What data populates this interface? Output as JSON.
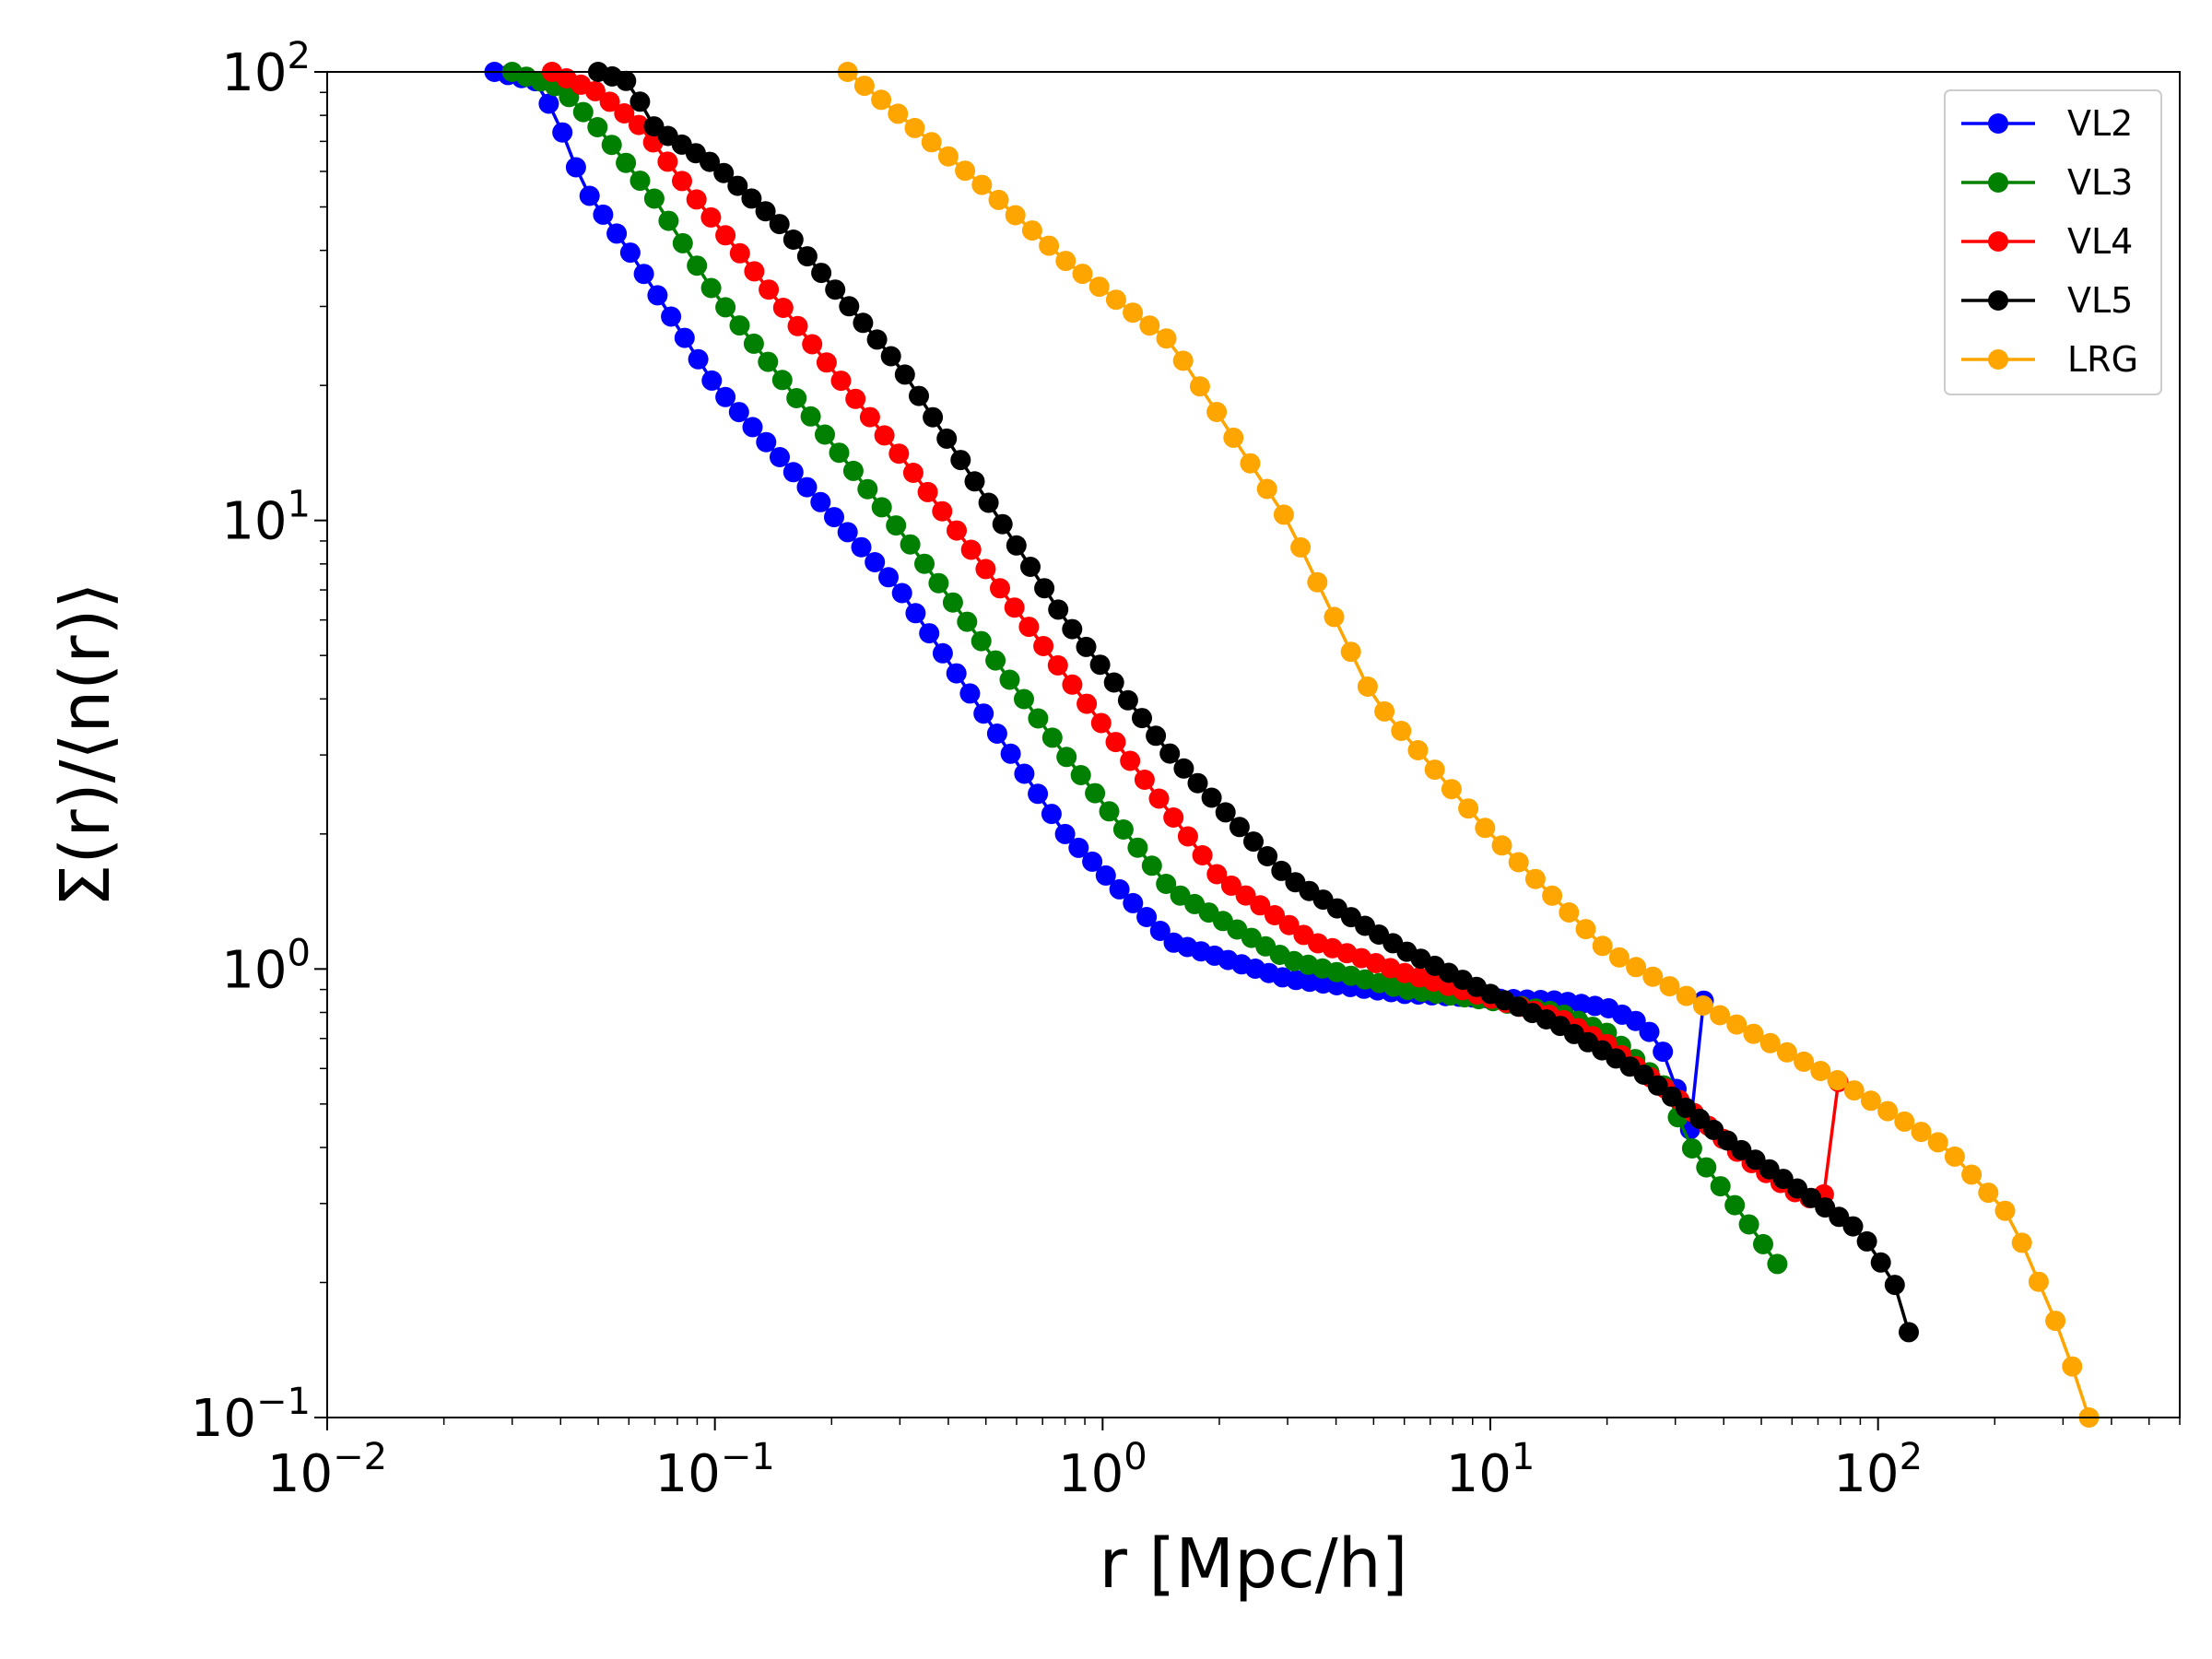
{
  "chart_data": {
    "type": "line",
    "title": "",
    "xlabel": "r [Mpc/h]",
    "ylabel": "Σ(r)/⟨n(r)⟩",
    "xscale": "log",
    "yscale": "log",
    "xlim": [
      0.01,
      600
    ],
    "ylim": [
      0.1,
      100
    ],
    "grid": false,
    "legend_position": "top-right",
    "x_ticks": [
      {
        "value": 0.01,
        "base": "10",
        "exp": "−2"
      },
      {
        "value": 0.1,
        "base": "10",
        "exp": "−1"
      },
      {
        "value": 1,
        "base": "10",
        "exp": "0"
      },
      {
        "value": 10,
        "base": "10",
        "exp": "1"
      },
      {
        "value": 100,
        "base": "10",
        "exp": "2"
      }
    ],
    "y_ticks": [
      {
        "value": 0.1,
        "base": "10",
        "exp": "−1"
      },
      {
        "value": 1,
        "base": "10",
        "exp": "0"
      },
      {
        "value": 10,
        "base": "10",
        "exp": "1"
      },
      {
        "value": 100,
        "base": "10",
        "exp": "2"
      }
    ],
    "series": [
      {
        "name": "VL2",
        "color": "#0000ff",
        "anchors": [
          [
            0.027,
            100
          ],
          [
            0.035,
            95
          ],
          [
            0.04,
            75
          ],
          [
            0.046,
            55
          ],
          [
            0.06,
            40
          ],
          [
            0.1,
            20
          ],
          [
            0.3,
            7
          ],
          [
            0.8,
            2
          ],
          [
            1.5,
            1.15
          ],
          [
            3,
            0.95
          ],
          [
            6,
            0.88
          ],
          [
            10,
            0.86
          ],
          [
            15,
            0.85
          ],
          [
            20,
            0.82
          ],
          [
            25,
            0.75
          ],
          [
            28,
            0.65
          ],
          [
            30,
            0.55
          ],
          [
            33,
            0.43
          ],
          [
            35.5,
            0.85
          ]
        ],
        "n": 90
      },
      {
        "name": "VL3",
        "color": "#008000",
        "anchors": [
          [
            0.03,
            100
          ],
          [
            0.04,
            92
          ],
          [
            0.05,
            75
          ],
          [
            0.07,
            52
          ],
          [
            0.1,
            32
          ],
          [
            0.3,
            9.5
          ],
          [
            0.8,
            3
          ],
          [
            1.5,
            1.5
          ],
          [
            3,
            1.05
          ],
          [
            6,
            0.9
          ],
          [
            10,
            0.85
          ],
          [
            15,
            0.8
          ],
          [
            20,
            0.72
          ],
          [
            28,
            0.55
          ],
          [
            33,
            0.4
          ],
          [
            45,
            0.28
          ],
          [
            55,
            0.22
          ]
        ],
        "n": 90
      },
      {
        "name": "VL4",
        "color": "#ff0000",
        "anchors": [
          [
            0.038,
            100
          ],
          [
            0.05,
            90
          ],
          [
            0.065,
            75
          ],
          [
            0.085,
            55
          ],
          [
            0.12,
            38
          ],
          [
            0.3,
            14
          ],
          [
            1,
            3.5
          ],
          [
            2,
            1.6
          ],
          [
            3.5,
            1.15
          ],
          [
            6,
            0.98
          ],
          [
            10,
            0.86
          ],
          [
            15,
            0.78
          ],
          [
            20,
            0.68
          ],
          [
            30,
            0.52
          ],
          [
            45,
            0.38
          ],
          [
            60,
            0.32
          ],
          [
            72,
            0.3
          ],
          [
            79,
            0.56
          ]
        ],
        "n": 90
      },
      {
        "name": "VL5",
        "color": "#000000",
        "anchors": [
          [
            0.05,
            100
          ],
          [
            0.06,
            95
          ],
          [
            0.07,
            75
          ],
          [
            0.1,
            62
          ],
          [
            0.15,
            45
          ],
          [
            0.3,
            22
          ],
          [
            0.8,
            6
          ],
          [
            1.5,
            3
          ],
          [
            3,
            1.6
          ],
          [
            6,
            1.1
          ],
          [
            10,
            0.88
          ],
          [
            15,
            0.75
          ],
          [
            25,
            0.58
          ],
          [
            40,
            0.42
          ],
          [
            60,
            0.33
          ],
          [
            90,
            0.26
          ],
          [
            110,
            0.2
          ],
          [
            120,
            0.155
          ]
        ],
        "n": 95
      },
      {
        "name": "LRG",
        "color": "#ffa500",
        "anchors": [
          [
            0.22,
            100
          ],
          [
            0.3,
            80
          ],
          [
            0.5,
            55
          ],
          [
            0.8,
            38
          ],
          [
            1.5,
            25
          ],
          [
            3,
            10
          ],
          [
            5,
            4
          ],
          [
            10,
            2
          ],
          [
            20,
            1.1
          ],
          [
            40,
            0.78
          ],
          [
            80,
            0.56
          ],
          [
            150,
            0.4
          ],
          [
            220,
            0.28
          ],
          [
            300,
            0.15
          ],
          [
            350,
            0.1
          ]
        ],
        "n": 75
      }
    ]
  }
}
